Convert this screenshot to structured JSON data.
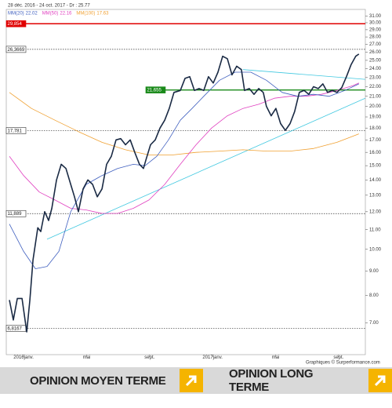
{
  "chart_data": {
    "type": "line",
    "title": "28 déc. 2016 - 24 oct. 2017 - Dr : 25.77",
    "credit": "Graphiques © Surperformance.com",
    "log_scale": true,
    "xlim": [
      -1.1,
      21.7
    ],
    "ylim": [
      6,
      32
    ],
    "xticks": [
      {
        "value": 0,
        "label": "2016janv."
      },
      {
        "value": 4,
        "label": "mai"
      },
      {
        "value": 8,
        "label": "sept."
      },
      {
        "value": 12,
        "label": "2017janv."
      },
      {
        "value": 16,
        "label": "mai"
      },
      {
        "value": 20,
        "label": "sept."
      }
    ],
    "yticks": [
      {
        "value": 7,
        "label": "7.00"
      },
      {
        "value": 8,
        "label": "8.00"
      },
      {
        "value": 9,
        "label": "9.00"
      },
      {
        "value": 10,
        "label": "10.00"
      },
      {
        "value": 11,
        "label": "11.00"
      },
      {
        "value": 12,
        "label": "12.00"
      },
      {
        "value": 13,
        "label": "13.00"
      },
      {
        "value": 14,
        "label": "14.00"
      },
      {
        "value": 15,
        "label": "15.00"
      },
      {
        "value": 16,
        "label": "16.00"
      },
      {
        "value": 17,
        "label": "17.00"
      },
      {
        "value": 18,
        "label": "18.00"
      },
      {
        "value": 19,
        "label": "19.00"
      },
      {
        "value": 20,
        "label": "20.00"
      },
      {
        "value": 21,
        "label": "21.00"
      },
      {
        "value": 22,
        "label": "22.00"
      },
      {
        "value": 23,
        "label": "23.00"
      },
      {
        "value": 24,
        "label": "24.00"
      },
      {
        "value": 25,
        "label": "25.00"
      },
      {
        "value": 26,
        "label": "26.00"
      },
      {
        "value": 27,
        "label": "27.00"
      },
      {
        "value": 28,
        "label": "28.00"
      },
      {
        "value": 29,
        "label": "29.00"
      },
      {
        "value": 30,
        "label": "30.00"
      },
      {
        "value": 31,
        "label": "31.00"
      }
    ],
    "series": [
      {
        "color": "#1a2a44",
        "width": 1.6,
        "x": [
          -0.9,
          -0.65,
          -0.4,
          -0.1,
          0.2,
          0.4,
          0.6,
          0.9,
          1.09,
          1.34,
          1.59,
          1.79,
          2.09,
          2.39,
          2.69,
          2.99,
          3.23,
          3.48,
          3.78,
          4.08,
          4.38,
          4.68,
          4.98,
          5.27,
          5.57,
          5.87,
          6.17,
          6.47,
          6.77,
          7.06,
          7.36,
          7.61,
          7.76,
          8.06,
          8.36,
          8.66,
          8.96,
          9.25,
          9.55,
          9.95,
          10.25,
          10.55,
          10.85,
          11.14,
          11.44,
          11.74,
          12.04,
          12.34,
          12.64,
          12.94,
          13.23,
          13.53,
          13.83,
          14.03,
          14.33,
          14.63,
          14.93,
          15.22,
          15.42,
          15.72,
          16.02,
          16.32,
          16.62,
          16.92,
          17.21,
          17.51,
          17.81,
          18.11,
          18.41,
          18.71,
          19.0,
          19.3,
          19.6,
          19.9,
          20.2,
          20.5,
          20.8,
          21.09,
          21.29
        ],
        "values": [
          7.82,
          7.1,
          7.88,
          7.88,
          6.7,
          7.82,
          9.5,
          11.1,
          10.9,
          12.0,
          11.5,
          12.2,
          14.0,
          15.1,
          14.8,
          13.7,
          12.9,
          12.0,
          13.4,
          14.0,
          13.7,
          12.9,
          13.4,
          15.1,
          15.7,
          17.0,
          17.1,
          16.6,
          17.0,
          16.0,
          15.1,
          14.8,
          15.4,
          16.6,
          17.0,
          18.0,
          18.7,
          19.8,
          21.4,
          21.6,
          22.9,
          23.1,
          21.6,
          21.8,
          21.6,
          23.1,
          22.4,
          23.6,
          25.5,
          25.2,
          23.3,
          24.3,
          23.9,
          21.6,
          21.8,
          21.2,
          21.8,
          21.4,
          20.0,
          19.1,
          19.8,
          18.4,
          17.8,
          18.4,
          19.5,
          21.4,
          21.6,
          21.2,
          22.0,
          21.8,
          22.3,
          21.4,
          21.6,
          21.4,
          21.9,
          23.1,
          24.5,
          25.5,
          25.77
        ]
      },
      {
        "name": "MM(20)",
        "legend": "22.02",
        "color": "#3f5fbf",
        "width": 0.8,
        "x": [
          -0.9,
          0,
          0.75,
          1.49,
          2.24,
          2.99,
          3.98,
          4.98,
          5.97,
          6.97,
          7.71,
          8.46,
          9.2,
          9.95,
          10.7,
          11.44,
          12.44,
          13.43,
          14.43,
          15.42,
          16.42,
          17.41,
          18.41,
          19.4,
          20.4,
          21.29
        ],
        "values": [
          11.3,
          9.9,
          9.1,
          9.2,
          9.9,
          12.0,
          13.7,
          14.3,
          14.8,
          15.1,
          15.0,
          15.7,
          17.0,
          18.7,
          19.8,
          21.0,
          22.7,
          23.6,
          23.6,
          22.7,
          21.4,
          21.0,
          21.2,
          21.0,
          21.6,
          22.3
        ]
      },
      {
        "name": "MM(50)",
        "legend": "22.16",
        "color": "#e040c0",
        "width": 0.8,
        "x": [
          -0.9,
          0,
          1.0,
          1.99,
          2.99,
          3.98,
          4.98,
          5.97,
          6.97,
          7.96,
          8.96,
          9.95,
          10.95,
          11.94,
          12.94,
          13.93,
          14.93,
          15.92,
          16.92,
          17.91,
          18.91,
          19.9,
          20.9,
          21.29
        ],
        "values": [
          15.7,
          14.3,
          13.2,
          12.7,
          12.2,
          12.1,
          11.9,
          11.9,
          12.2,
          12.7,
          13.7,
          15.1,
          16.6,
          18.0,
          19.1,
          19.8,
          20.2,
          20.8,
          21.0,
          21.0,
          21.2,
          21.6,
          22.1,
          22.4
        ]
      },
      {
        "name": "MM(100)",
        "legend": "17.63",
        "color": "#f0a030",
        "width": 0.8,
        "x": [
          -0.9,
          0.5,
          1.99,
          3.48,
          4.98,
          6.47,
          7.96,
          9.45,
          10.95,
          12.44,
          13.93,
          15.42,
          16.92,
          18.41,
          19.9,
          21.29
        ],
        "values": [
          21.4,
          19.8,
          18.7,
          17.7,
          16.8,
          16.2,
          15.8,
          15.8,
          16.0,
          16.1,
          16.2,
          16.1,
          16.1,
          16.3,
          16.8,
          17.5
        ]
      },
      {
        "color": "#40c8e0",
        "width": 0.8,
        "x": [
          1.49,
          21.69
        ],
        "values": [
          10.5,
          20.8
        ]
      },
      {
        "color": "#40c8e0",
        "width": 0.8,
        "x": [
          13.93,
          21.69
        ],
        "values": [
          23.9,
          22.8
        ]
      }
    ],
    "levels": [
      {
        "value": 29.854,
        "label": "29,854",
        "color": "#e00000",
        "dash": false
      },
      {
        "value": 26.3669,
        "label": "26,3669",
        "color": "#333333",
        "dash": true
      },
      {
        "value": 21.655,
        "label": "21,655",
        "color": "#1a8a1a",
        "dash": false,
        "start": 7.76
      },
      {
        "value": 17.781,
        "label": "17,781",
        "color": "#333333",
        "dash": true
      },
      {
        "value": 11.889,
        "label": "11,889",
        "color": "#333333",
        "dash": true
      },
      {
        "value": 6.8167,
        "label": "6,8167",
        "color": "#333333",
        "dash": true
      }
    ]
  },
  "buttons": [
    "OPINION MOYEN TERME",
    "OPINION LONG TERME"
  ]
}
